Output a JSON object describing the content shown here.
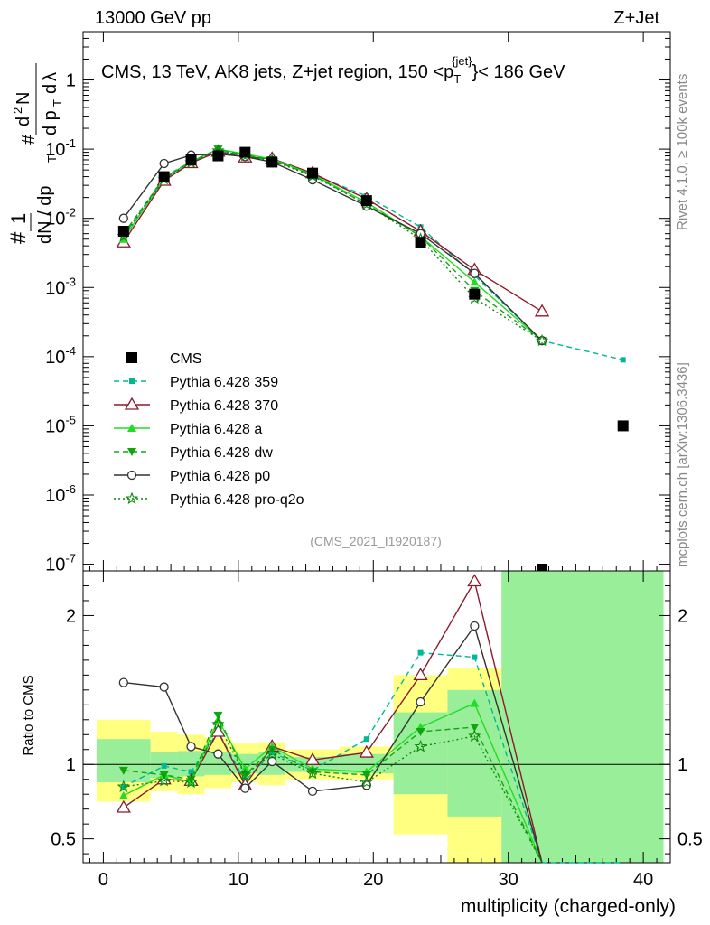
{
  "header": {
    "left": "13000 GeV pp",
    "right": "Z+Jet"
  },
  "side_labels": {
    "rivet": "Rivet 4.1.0, ≥ 100k events",
    "mcplots": "mcplots.cern.ch [arXiv:1306.3436]"
  },
  "chart_data": {
    "type": "scatter",
    "title": "CMS, 13 TeV, AK8 jets, Z+jet region, 150 < p_T^jet < 186 GeV",
    "title_parts": {
      "main": "CMS, 13 TeV, AK8 jets, Z+jet region, 150 <p",
      "sub": "T",
      "sup": "{jet}",
      "tail": "}< 186 GeV"
    },
    "xlabel": "multiplicity (charged-only)",
    "ylabel_ratio": "Ratio to CMS",
    "analysis_id": "(CMS_2021_I1920187)",
    "xlim": [
      -1.5,
      42
    ],
    "ylim_main": [
      8e-08,
      5
    ],
    "ylim_ratio": [
      0.34,
      2.3
    ],
    "yscale_main": "log",
    "x_ticks": [
      "0",
      "10",
      "20",
      "30",
      "40"
    ],
    "y_ticks_main": [
      "10^-7",
      "10^-6",
      "10^-5",
      "10^-4",
      "10^-3",
      "10^-2",
      "10^-1",
      "1"
    ],
    "y_ticks_ratio": [
      "0.5",
      "1",
      "2"
    ],
    "legend_position": "center-left",
    "series": [
      {
        "name": "CMS",
        "color": "#000000",
        "marker": "square",
        "dash": "none",
        "x": [
          1.5,
          4.5,
          6.5,
          8.5,
          10.5,
          12.5,
          15.5,
          19.5,
          23.5,
          27.5,
          32.5,
          38.5
        ],
        "y": [
          0.0065,
          0.04,
          0.07,
          0.08,
          0.09,
          0.065,
          0.045,
          0.018,
          0.0045,
          0.0008,
          8.5e-08,
          1e-05
        ],
        "ratio": []
      },
      {
        "name": "Pythia 6.428 359",
        "color": "#00b894",
        "marker": "smallsquare",
        "dash": "6,4",
        "x": [
          1.5,
          4.5,
          6.5,
          8.5,
          10.5,
          12.5,
          15.5,
          19.5,
          23.5,
          27.5,
          32.5,
          38.5
        ],
        "y": [
          0.0055,
          0.04,
          0.066,
          0.095,
          0.08,
          0.07,
          0.043,
          0.021,
          0.0075,
          0.0015,
          0.00017,
          9e-05
        ],
        "ratio": [
          0.85,
          0.99,
          0.95,
          1.22,
          0.89,
          1.08,
          0.96,
          1.17,
          1.75,
          1.72,
          -1,
          -1
        ]
      },
      {
        "name": "Pythia 6.428 370",
        "color": "#8b1a2b",
        "marker": "opentriangle",
        "dash": "none",
        "x": [
          1.5,
          4.5,
          6.5,
          8.5,
          10.5,
          12.5,
          15.5,
          19.5,
          23.5,
          27.5,
          32.5
        ],
        "y": [
          0.0045,
          0.035,
          0.063,
          0.092,
          0.076,
          0.073,
          0.045,
          0.019,
          0.0065,
          0.0018,
          0.00045
        ],
        "ratio": [
          0.71,
          0.9,
          0.89,
          1.22,
          0.86,
          1.12,
          1.03,
          1.08,
          1.6,
          2.23,
          -1
        ]
      },
      {
        "name": "Pythia 6.428 a",
        "color": "#22dd22",
        "marker": "triangle",
        "dash": "none",
        "x": [
          1.5,
          4.5,
          6.5,
          8.5,
          10.5,
          12.5,
          15.5,
          19.5,
          23.5,
          27.5,
          32.5
        ],
        "y": [
          0.005,
          0.038,
          0.066,
          0.1,
          0.085,
          0.072,
          0.043,
          0.017,
          0.0055,
          0.0012,
          0.00017
        ],
        "ratio": [
          0.79,
          0.93,
          0.88,
          1.3,
          0.97,
          1.12,
          0.97,
          0.95,
          1.25,
          1.41,
          -1
        ]
      },
      {
        "name": "Pythia 6.428 dw",
        "color": "#11a611",
        "marker": "invtriangle",
        "dash": "6,4",
        "x": [
          1.5,
          4.5,
          6.5,
          8.5,
          10.5,
          12.5,
          15.5,
          19.5,
          23.5,
          27.5,
          32.5
        ],
        "y": [
          0.006,
          0.038,
          0.066,
          0.1,
          0.082,
          0.07,
          0.042,
          0.016,
          0.0055,
          0.0009,
          0.00017
        ],
        "ratio": [
          0.96,
          0.93,
          0.9,
          1.33,
          0.93,
          1.1,
          0.95,
          0.93,
          1.22,
          1.25,
          -1
        ]
      },
      {
        "name": "Pythia 6.428 p0",
        "color": "#333333",
        "marker": "opencircle",
        "dash": "none",
        "x": [
          1.5,
          4.5,
          6.5,
          8.5,
          10.5,
          12.5,
          15.5,
          19.5,
          23.5,
          27.5,
          32.5
        ],
        "y": [
          0.01,
          0.062,
          0.082,
          0.085,
          0.078,
          0.065,
          0.036,
          0.015,
          0.006,
          0.0016,
          0.00017
        ],
        "ratio": [
          1.55,
          1.52,
          1.12,
          1.07,
          0.84,
          1.02,
          0.82,
          0.86,
          1.42,
          1.93,
          -1
        ]
      },
      {
        "name": "Pythia 6.428 pro-q2o",
        "color": "#0a8a0a",
        "marker": "star",
        "dash": "2,3",
        "x": [
          1.5,
          4.5,
          6.5,
          8.5,
          10.5,
          12.5,
          15.5,
          19.5,
          23.5,
          27.5,
          32.5
        ],
        "y": [
          0.0055,
          0.037,
          0.064,
          0.095,
          0.08,
          0.068,
          0.041,
          0.016,
          0.005,
          0.0007,
          0.00017
        ],
        "ratio": [
          0.85,
          0.89,
          0.88,
          1.27,
          0.93,
          1.07,
          0.94,
          0.88,
          1.12,
          1.19,
          -1
        ]
      }
    ],
    "uncertainty_bands": {
      "bins": [
        {
          "x0": -0.5,
          "x1": 3.5,
          "stat": [
            0.88,
            1.17
          ],
          "total": [
            0.75,
            1.3
          ]
        },
        {
          "x0": 3.5,
          "x1": 5.5,
          "stat": [
            0.91,
            1.08
          ],
          "total": [
            0.82,
            1.22
          ]
        },
        {
          "x0": 5.5,
          "x1": 7.5,
          "stat": [
            0.92,
            1.09
          ],
          "total": [
            0.8,
            1.2
          ]
        },
        {
          "x0": 7.5,
          "x1": 9.5,
          "stat": [
            0.93,
            1.08
          ],
          "total": [
            0.84,
            1.18
          ]
        },
        {
          "x0": 9.5,
          "x1": 11.5,
          "stat": [
            0.94,
            1.07
          ],
          "total": [
            0.88,
            1.14
          ]
        },
        {
          "x0": 11.5,
          "x1": 13.5,
          "stat": [
            0.93,
            1.08
          ],
          "total": [
            0.86,
            1.15
          ]
        },
        {
          "x0": 13.5,
          "x1": 17.5,
          "stat": [
            0.95,
            1.05
          ],
          "total": [
            0.9,
            1.1
          ]
        },
        {
          "x0": 17.5,
          "x1": 21.5,
          "stat": [
            0.94,
            1.07
          ],
          "total": [
            0.9,
            1.12
          ]
        },
        {
          "x0": 21.5,
          "x1": 25.5,
          "stat": [
            0.8,
            1.35
          ],
          "total": [
            0.53,
            1.6
          ]
        },
        {
          "x0": 25.5,
          "x1": 29.5,
          "stat": [
            0.65,
            1.5
          ],
          "total": [
            0.34,
            1.65
          ]
        },
        {
          "x0": 29.5,
          "x1": 41.5,
          "stat": [
            0.34,
            2.3
          ],
          "total": [
            0.34,
            2.3
          ]
        }
      ]
    }
  }
}
